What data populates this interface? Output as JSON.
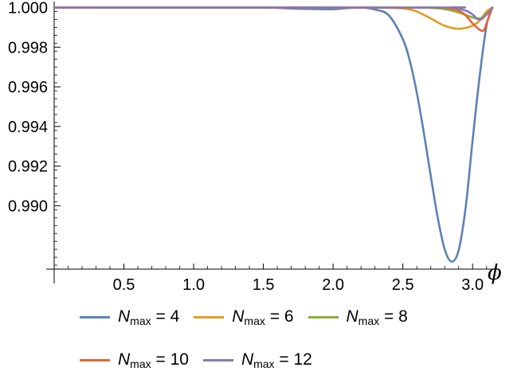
{
  "chart_data": {
    "type": "line",
    "xlabel": "ϕ",
    "ylabel": "",
    "xlim": [
      0,
      3.14159
    ],
    "ylim": [
      0.9868,
      1.0001
    ],
    "xticks": [
      "0.5",
      "1.0",
      "1.5",
      "2.0",
      "2.5",
      "3.0"
    ],
    "xtick_values": [
      0.5,
      1.0,
      1.5,
      2.0,
      2.5,
      3.0
    ],
    "yticks": [
      "0.990",
      "0.992",
      "0.994",
      "0.996",
      "0.998",
      "1.000"
    ],
    "ytick_values": [
      0.99,
      0.992,
      0.994,
      0.996,
      0.998,
      1.0
    ],
    "legend_position": "bottom",
    "series": [
      {
        "name": "Nmax = 4",
        "label_symbol": "N",
        "label_sub": "max",
        "label_value": "= 4",
        "color": "#5E81B5",
        "x": [
          0,
          0.5,
          1.0,
          1.5,
          1.7,
          1.9,
          2.0,
          2.1,
          2.2,
          2.3,
          2.4,
          2.5,
          2.55,
          2.6,
          2.65,
          2.7,
          2.75,
          2.8,
          2.85,
          2.9,
          2.95,
          3.0,
          3.05,
          3.1,
          3.14159
        ],
        "values": [
          1.0,
          1.0,
          1.0,
          1.0,
          0.99995,
          0.99992,
          0.99992,
          0.99997,
          1.0,
          0.9999,
          0.9996,
          0.9984,
          0.9973,
          0.9957,
          0.9937,
          0.9915,
          0.9894,
          0.9878,
          0.98718,
          0.98775,
          0.9899,
          0.9933,
          0.9965,
          0.9991,
          1.0
        ]
      },
      {
        "name": "Nmax = 6",
        "label_symbol": "N",
        "label_sub": "max",
        "label_value": "= 6",
        "color": "#E19C24",
        "x": [
          0,
          2.0,
          2.3,
          2.5,
          2.6,
          2.7,
          2.8,
          2.9,
          3.0,
          3.05,
          3.1,
          3.14159
        ],
        "values": [
          1.0,
          1.0,
          1.0,
          0.99995,
          0.9998,
          0.99945,
          0.99908,
          0.99893,
          0.99908,
          0.99935,
          0.9998,
          1.0
        ]
      },
      {
        "name": "Nmax = 8",
        "label_symbol": "N",
        "label_sub": "max",
        "label_value": "= 8",
        "color": "#8FB032",
        "x": [
          0,
          2.5,
          2.7,
          2.8,
          2.9,
          3.0,
          3.05,
          3.1,
          3.14159
        ],
        "values": [
          1.0,
          1.0,
          0.99998,
          0.99992,
          0.99975,
          0.9995,
          0.99945,
          0.99965,
          1.0
        ]
      },
      {
        "name": "Nmax = 10",
        "label_symbol": "N",
        "label_sub": "max",
        "label_value": "= 10",
        "color": "#EB6235",
        "x": [
          0,
          2.6,
          2.8,
          2.9,
          2.95,
          3.0,
          3.05,
          3.08,
          3.1,
          3.14159
        ],
        "values": [
          1.0,
          1.0,
          0.99998,
          0.99985,
          0.9996,
          0.9992,
          0.99888,
          0.99885,
          0.9992,
          1.0
        ]
      },
      {
        "name": "Nmax = 12",
        "label_symbol": "N",
        "label_sub": "max",
        "label_value": "= 12",
        "color": "#8778B3",
        "x": [
          0,
          2.7,
          2.85,
          2.95,
          3.0,
          3.03,
          3.06,
          3.1,
          3.14159
        ],
        "values": [
          1.0,
          1.0,
          1.0,
          0.99985,
          0.99965,
          0.99945,
          0.9994,
          0.99965,
          1.0
        ]
      }
    ]
  }
}
